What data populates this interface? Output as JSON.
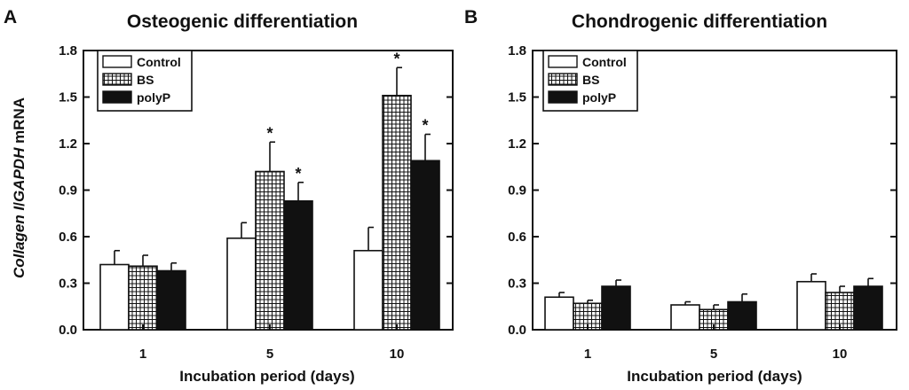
{
  "chart_data": [
    {
      "panel": "A",
      "type": "bar",
      "title": "Osteogenic differentiation",
      "xlabel": "Incubation period (days)",
      "ylabel_parts": [
        "Collagen I",
        "/",
        "GAPDH",
        " mRNA"
      ],
      "ylim": [
        0,
        1.8
      ],
      "yticks": [
        "0.0",
        "0.3",
        "0.6",
        "0.9",
        "1.2",
        "1.5",
        "1.8"
      ],
      "categories": [
        "1",
        "5",
        "10"
      ],
      "legend_position": "top-left",
      "series": [
        {
          "name": "Control",
          "fill": "white",
          "values": [
            0.42,
            0.59,
            0.51
          ],
          "errors": [
            0.09,
            0.1,
            0.15
          ],
          "significant": [
            false,
            false,
            false
          ]
        },
        {
          "name": "BS",
          "fill": "grid",
          "values": [
            0.41,
            1.02,
            1.51
          ],
          "errors": [
            0.07,
            0.19,
            0.18
          ],
          "significant": [
            false,
            true,
            true
          ]
        },
        {
          "name": "polyP",
          "fill": "black",
          "values": [
            0.38,
            0.83,
            1.09
          ],
          "errors": [
            0.05,
            0.12,
            0.17
          ],
          "significant": [
            false,
            true,
            true
          ]
        }
      ],
      "significance_marker": "*"
    },
    {
      "panel": "B",
      "type": "bar",
      "title": "Chondrogenic differentiation",
      "xlabel": "Incubation period (days)",
      "ylim": [
        0,
        1.8
      ],
      "yticks": [
        "0.0",
        "0.3",
        "0.6",
        "0.9",
        "1.2",
        "1.5",
        "1.8"
      ],
      "categories": [
        "1",
        "5",
        "10"
      ],
      "legend_position": "top-left",
      "series": [
        {
          "name": "Control",
          "fill": "white",
          "values": [
            0.21,
            0.16,
            0.31
          ],
          "errors": [
            0.03,
            0.02,
            0.05
          ],
          "significant": [
            false,
            false,
            false
          ]
        },
        {
          "name": "BS",
          "fill": "grid",
          "values": [
            0.17,
            0.13,
            0.24
          ],
          "errors": [
            0.02,
            0.03,
            0.04
          ],
          "significant": [
            false,
            false,
            false
          ]
        },
        {
          "name": "polyP",
          "fill": "black",
          "values": [
            0.28,
            0.18,
            0.28
          ],
          "errors": [
            0.04,
            0.05,
            0.05
          ],
          "significant": [
            false,
            false,
            false
          ]
        }
      ]
    }
  ]
}
